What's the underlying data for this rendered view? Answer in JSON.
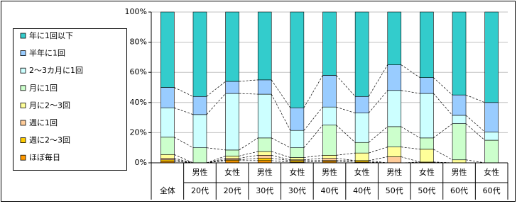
{
  "chart_data": {
    "type": "stacked_bar_100",
    "categories": [
      [
        "全体"
      ],
      [
        "男性",
        "20代"
      ],
      [
        "女性",
        "20代"
      ],
      [
        "男性",
        "30代"
      ],
      [
        "女性",
        "30代"
      ],
      [
        "男性",
        "40代"
      ],
      [
        "女性",
        "40代"
      ],
      [
        "男性",
        "50代"
      ],
      [
        "女性",
        "50代"
      ],
      [
        "男性",
        "60代"
      ],
      [
        "女性",
        "60代"
      ]
    ],
    "series": [
      {
        "name": "ほぼ毎日",
        "color": "#ff9900",
        "values": [
          1,
          0,
          1.5,
          1.5,
          0.5,
          1,
          0.5,
          0,
          0,
          0,
          0
        ]
      },
      {
        "name": "週に2〜3回",
        "color": "#ffcc00",
        "values": [
          1,
          0,
          0.5,
          1.5,
          1,
          0.5,
          1,
          0,
          0.5,
          0,
          0
        ]
      },
      {
        "name": "週に1回",
        "color": "#ffcc99",
        "values": [
          1,
          0,
          1,
          2,
          0.5,
          1.5,
          0,
          4,
          0,
          0,
          0
        ]
      },
      {
        "name": "月に2〜3回",
        "color": "#ffff99",
        "values": [
          2.5,
          0,
          1.5,
          2.5,
          1.5,
          2,
          5,
          6.5,
          8.5,
          2,
          0
        ]
      },
      {
        "name": "月に1回",
        "color": "#ccffcc",
        "values": [
          11.5,
          10,
          4,
          9,
          6.5,
          20,
          7,
          13.5,
          7.5,
          24,
          15
        ]
      },
      {
        "name": "2〜3カ月に1回",
        "color": "#ccffff",
        "values": [
          19.5,
          22,
          37.5,
          29,
          11.5,
          12,
          19.5,
          24,
          29.5,
          5.5,
          5.5
        ]
      },
      {
        "name": "半年に1回",
        "color": "#99ccff",
        "values": [
          13.5,
          12,
          8,
          9.5,
          15,
          21,
          11,
          17,
          10.5,
          13.5,
          19.5
        ]
      },
      {
        "name": "年に1回以下",
        "color": "#33cccc",
        "values": [
          50,
          56,
          46,
          45,
          63.5,
          42,
          56,
          35,
          43.5,
          55,
          60
        ]
      }
    ],
    "ylim": [
      0,
      100
    ],
    "yticks": [
      {
        "value": 0,
        "label": "0%"
      },
      {
        "value": 20,
        "label": "20%"
      },
      {
        "value": 40,
        "label": "40%"
      },
      {
        "value": 60,
        "label": "60%"
      },
      {
        "value": 80,
        "label": "80%"
      },
      {
        "value": 100,
        "label": "100%"
      }
    ],
    "grid": true
  }
}
